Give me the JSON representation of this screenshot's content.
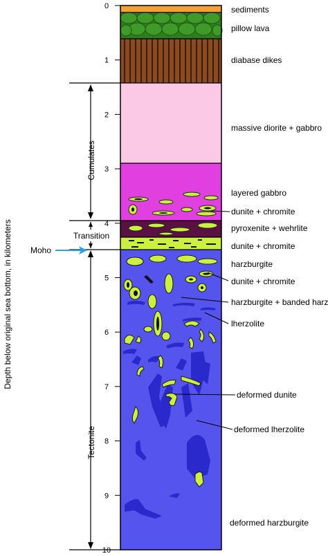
{
  "axis": {
    "label": "Depth below original sea bottom, in kilometers",
    "ticks": [
      "0",
      "1",
      "2",
      "3",
      "4",
      "5",
      "6",
      "7",
      "8",
      "9",
      "10"
    ]
  },
  "zones": {
    "cumulates": "Cumulates",
    "transition": "Transition",
    "tectonite": "Tectonite",
    "moho": "Moho"
  },
  "layers": {
    "sediments": "sediments",
    "pillow_lava": "pillow lava",
    "diabase_dikes": "diabase dikes",
    "massive_diorite_gabbro": "massive diorite + gabbro",
    "layered_gabbro": "layered gabbro",
    "dunite_chromite_1": "dunite + chromite",
    "pyroxenite_wehrlite": "pyroxenite + wehrlite",
    "dunite_chromite_2": "dunite + chromite",
    "harzburgite": "harzburgite",
    "dunite_chromite_3": "dunite + chromite",
    "harzburgite_banded": "harzburgite + banded harz",
    "lherzolite": "lherzolite",
    "deformed_dunite": "deformed dunite",
    "deformed_lherzolite": "deformed lherzolite",
    "deformed_harzburgite": "deformed harzburgite"
  },
  "colors": {
    "sediments": "#f5a030",
    "pillow_lava": "#2e7d1e",
    "pillow_fill": "#3f9a2a",
    "dikes": "#8a4a22",
    "dikes_line": "#3a1c0a",
    "massive_gabbro": "#fbc8e6",
    "layered_gabbro": "#e040e0",
    "pyroxenite": "#5a1040",
    "dunite": "#ccf040",
    "tectonite": "#5555ee",
    "lherzolite": "#2a2acc",
    "chromite": "#111111",
    "moho_arrow": "#2aa0e0"
  }
}
